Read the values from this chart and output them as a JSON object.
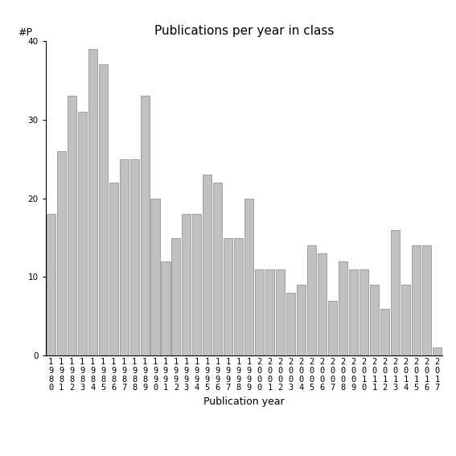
{
  "title": "Publications per year in class",
  "xlabel": "Publication year",
  "ylabel": "#P",
  "categories": [
    "1980",
    "1981",
    "1982",
    "1983",
    "1984",
    "1985",
    "1986",
    "1987",
    "1988",
    "1989",
    "1990",
    "1991",
    "1992",
    "1993",
    "1994",
    "1995",
    "1996",
    "1997",
    "1998",
    "1999",
    "2000",
    "2001",
    "2002",
    "2003",
    "2004",
    "2005",
    "2006",
    "2007",
    "2008",
    "2009",
    "2010",
    "2011",
    "2012",
    "2013",
    "2014",
    "2015",
    "2016",
    "2017"
  ],
  "values": [
    18,
    26,
    33,
    31,
    39,
    37,
    22,
    25,
    25,
    33,
    20,
    12,
    15,
    18,
    18,
    23,
    22,
    15,
    15,
    20,
    11,
    11,
    11,
    8,
    9,
    14,
    13,
    7,
    12,
    11,
    11,
    9,
    6,
    16,
    9,
    14,
    14,
    1
  ],
  "bar_color": "#c0c0c0",
  "bar_edge_color": "#888888",
  "ylim": [
    0,
    40
  ],
  "yticks": [
    0,
    10,
    20,
    30,
    40
  ],
  "background_color": "#ffffff",
  "title_fontsize": 11,
  "axis_fontsize": 9,
  "tick_fontsize": 7.5
}
